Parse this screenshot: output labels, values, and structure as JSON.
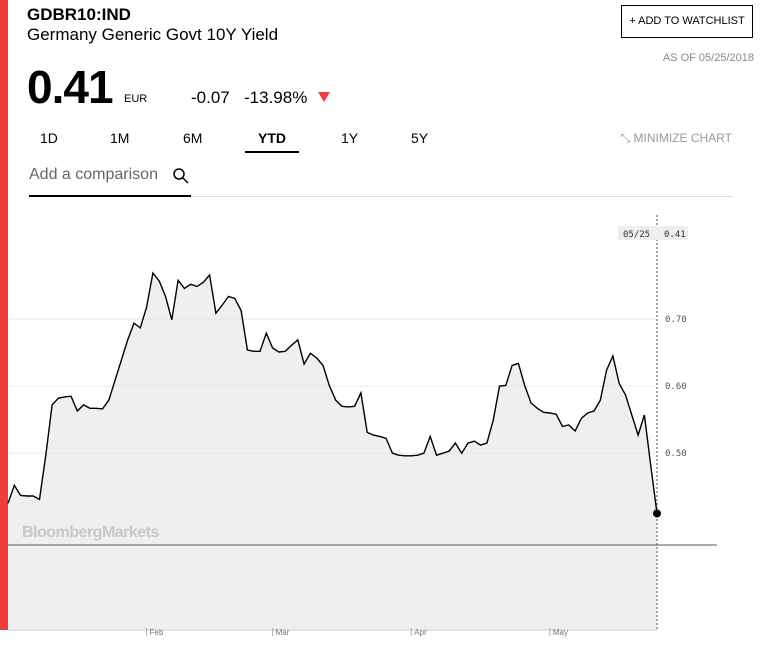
{
  "header": {
    "ticker": "GDBR10:IND",
    "name": "Germany Generic Govt 10Y Yield",
    "watchlist": "ADD TO WATCHLIST",
    "as_of": "AS OF 05/25/2018",
    "price": "0.41",
    "currency": "EUR",
    "change": "-0.07",
    "change_pct": "-13.98%"
  },
  "tabs": [
    "1D",
    "1M",
    "6M",
    "YTD",
    "1Y",
    "5Y"
  ],
  "active_tab": 3,
  "minimize": "MINIMIZE CHART",
  "comparison_placeholder": "Add a comparison",
  "chart_data": {
    "type": "line",
    "color": "#000000",
    "fill": "#efefef",
    "watermark": "BloombergMarkets",
    "last_date": "05/25",
    "values": [
      0.425,
      0.452,
      0.437,
      0.436,
      0.436,
      0.431,
      0.497,
      0.572,
      0.582,
      0.584,
      0.585,
      0.563,
      0.572,
      0.567,
      0.567,
      0.566,
      0.579,
      0.609,
      0.639,
      0.669,
      0.694,
      0.687,
      0.718,
      0.769,
      0.757,
      0.734,
      0.699,
      0.758,
      0.746,
      0.752,
      0.749,
      0.755,
      0.766,
      0.709,
      0.721,
      0.734,
      0.731,
      0.713,
      0.654,
      0.652,
      0.652,
      0.679,
      0.657,
      0.651,
      0.652,
      0.661,
      0.669,
      0.633,
      0.649,
      0.642,
      0.631,
      0.601,
      0.579,
      0.57,
      0.569,
      0.57,
      0.59,
      0.531,
      0.527,
      0.525,
      0.522,
      0.5,
      0.497,
      0.496,
      0.496,
      0.497,
      0.5,
      0.525,
      0.497,
      0.5,
      0.503,
      0.515,
      0.5,
      0.515,
      0.518,
      0.512,
      0.515,
      0.549,
      0.6,
      0.601,
      0.631,
      0.634,
      0.601,
      0.575,
      0.567,
      0.561,
      0.56,
      0.558,
      0.54,
      0.542,
      0.533,
      0.552,
      0.56,
      0.563,
      0.579,
      0.624,
      0.645,
      0.604,
      0.587,
      0.557,
      0.527,
      0.557,
      0.482,
      0.41
    ],
    "xlim": [
      0,
      103
    ],
    "xticks": [
      {
        "value": 22,
        "label": "Feb"
      },
      {
        "value": 42,
        "label": "Mar"
      },
      {
        "value": 64,
        "label": "Apr"
      },
      {
        "value": 86,
        "label": "May"
      }
    ],
    "ylim": [
      0.236,
      0.86
    ],
    "yticks": [
      {
        "value": 0.5,
        "label": "0.50"
      },
      {
        "value": 0.6,
        "label": "0.60"
      },
      {
        "value": 0.7,
        "label": "0.70"
      }
    ],
    "grid": true
  }
}
